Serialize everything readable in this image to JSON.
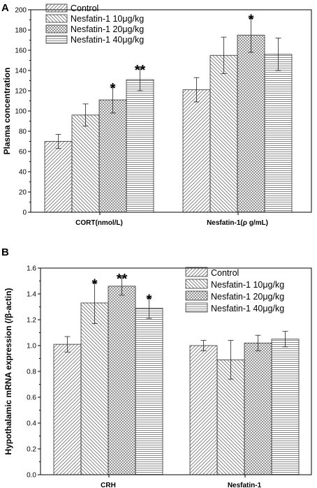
{
  "chart_data": [
    {
      "type": "bar",
      "panel_label": "A",
      "title": "",
      "xlabel": "",
      "ylabel": "Plasma concentration",
      "ylim": [
        0,
        200
      ],
      "yticks": [
        "0",
        "20",
        "40",
        "60",
        "80",
        "100",
        "120",
        "140",
        "160",
        "180",
        "200"
      ],
      "categories": [
        "CORT(nmol/L)",
        "Nesfatin-1(ρ g/mL)"
      ],
      "legend_position": "top-left",
      "series": [
        {
          "name": "Control",
          "values": [
            70,
            121
          ],
          "errors": [
            7,
            12
          ],
          "stars": [
            "",
            ""
          ]
        },
        {
          "name": "Nesfatin-1 10μg/kg",
          "values": [
            96,
            155
          ],
          "errors": [
            11,
            18
          ],
          "stars": [
            "",
            ""
          ]
        },
        {
          "name": "Nesfatin-1 20μg/kg",
          "values": [
            111,
            175
          ],
          "errors": [
            13,
            17
          ],
          "stars": [
            "*",
            "*"
          ]
        },
        {
          "name": "Nesfatin-1 40μg/kg",
          "values": [
            131,
            156
          ],
          "errors": [
            11,
            16
          ],
          "stars": [
            "**",
            ""
          ]
        }
      ]
    },
    {
      "type": "bar",
      "panel_label": "B",
      "title": "",
      "xlabel": "",
      "ylabel": "Hypothalamic mRNA expression (/β-actin)",
      "ylim": [
        0,
        1.6
      ],
      "yticks": [
        "0.0",
        "0.2",
        "0.4",
        "0.6",
        "0.8",
        "1.0",
        "1.2",
        "1.4",
        "1.6"
      ],
      "categories": [
        "CRH",
        "Nesfatin-1"
      ],
      "legend_position": "top-right",
      "series": [
        {
          "name": "Control",
          "values": [
            1.01,
            1.0
          ],
          "errors": [
            0.06,
            0.04
          ],
          "stars": [
            "",
            ""
          ]
        },
        {
          "name": "Nesfatin-1 10μg/kg",
          "values": [
            1.33,
            0.89
          ],
          "errors": [
            0.16,
            0.15
          ],
          "stars": [
            "*",
            ""
          ]
        },
        {
          "name": "Nesfatin-1 20μg/kg",
          "values": [
            1.46,
            1.02
          ],
          "errors": [
            0.07,
            0.06
          ],
          "stars": [
            "**",
            ""
          ]
        },
        {
          "name": "Nesfatin-1 40μg/kg",
          "values": [
            1.29,
            1.05
          ],
          "errors": [
            0.08,
            0.06
          ],
          "stars": [
            "*",
            ""
          ]
        }
      ]
    }
  ]
}
